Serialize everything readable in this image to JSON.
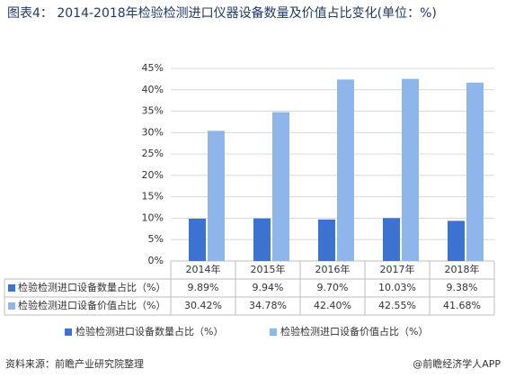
{
  "chart_data": {
    "type": "bar",
    "title": "图表4： 2014-2018年检验检测进口仪器设备数量及价值占比变化(单位：%)",
    "categories": [
      "2014年",
      "2015年",
      "2016年",
      "2017年",
      "2018年"
    ],
    "series": [
      {
        "name": "检验检测进口设备数量占比（%）",
        "color": "#3c72d0",
        "values": [
          9.89,
          9.94,
          9.7,
          10.03,
          9.38
        ],
        "value_labels": [
          "9.89%",
          "9.94%",
          "9.70%",
          "10.03%",
          "9.38%"
        ]
      },
      {
        "name": "检验检测进口设备价值占比（%）",
        "color": "#8fb6ea",
        "values": [
          30.42,
          34.78,
          42.4,
          42.55,
          41.68
        ],
        "value_labels": [
          "30.42%",
          "34.78%",
          "42.40%",
          "42.55%",
          "41.68%"
        ]
      }
    ],
    "ylim": [
      0,
      45
    ],
    "yticks": [
      {
        "value": 0,
        "label": "0%"
      },
      {
        "value": 5,
        "label": "5%"
      },
      {
        "value": 10,
        "label": "10%"
      },
      {
        "value": 15,
        "label": "15%"
      },
      {
        "value": 20,
        "label": "20%"
      },
      {
        "value": 25,
        "label": "25%"
      },
      {
        "value": 30,
        "label": "30%"
      },
      {
        "value": 35,
        "label": "35%"
      },
      {
        "value": 40,
        "label": "40%"
      },
      {
        "value": 45,
        "label": "45%"
      }
    ],
    "grid": true,
    "source": "资料来源：前瞻产业研究院整理",
    "footer": "@前瞻经济学人APP"
  }
}
